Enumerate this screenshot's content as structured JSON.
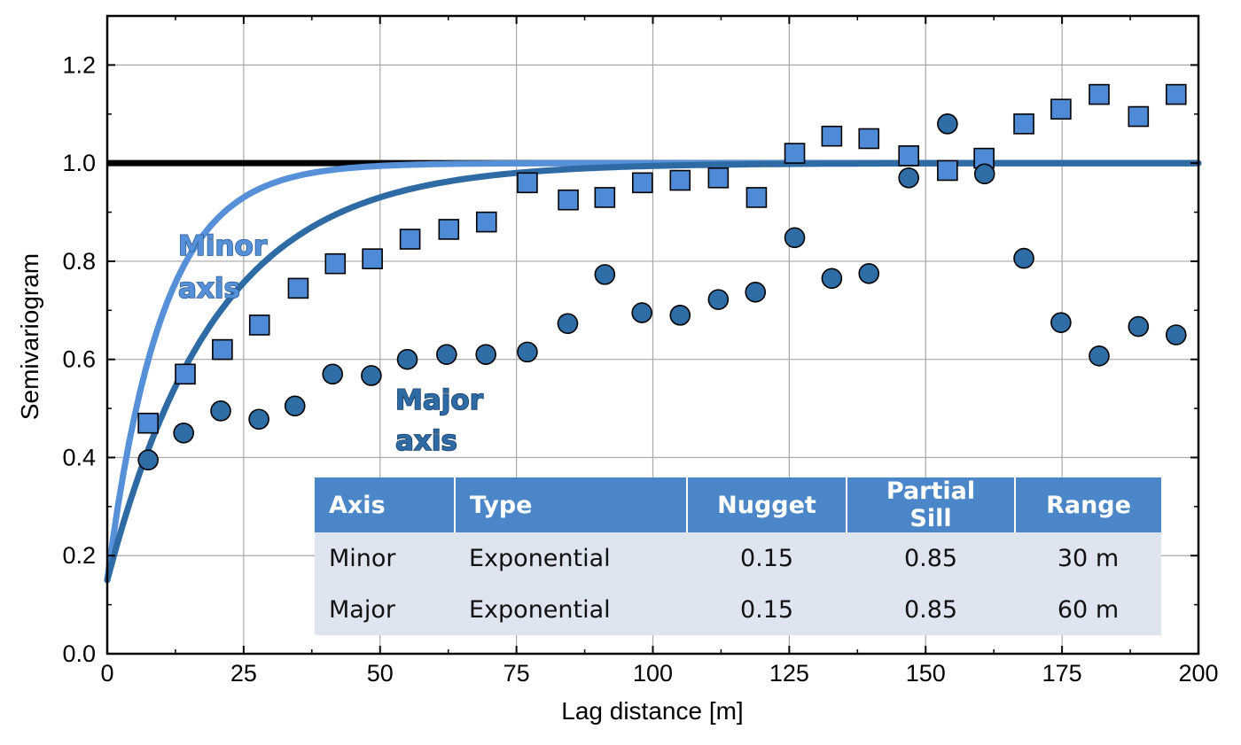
{
  "colors": {
    "minor": "#5590d9",
    "minor_marker": "#4f8ad6",
    "major": "#2e6aa3",
    "major_marker": "#2e6da5",
    "sill_line": "#000000",
    "grid": "#a8a8a8",
    "table_header": "#4a86c8",
    "table_body": "#dfe4f1"
  },
  "chart_data": {
    "type": "scatter",
    "xlabel": "Lag distance [m]",
    "ylabel": "Semivariogram",
    "xlim": [
      0,
      200
    ],
    "ylim": [
      0,
      1.3
    ],
    "x_ticks": [
      "0",
      "25",
      "50",
      "75",
      "100",
      "125",
      "150",
      "175",
      "200"
    ],
    "y_ticks": [
      "0.0",
      "0.2",
      "0.4",
      "0.6",
      "0.8",
      "1.0",
      "1.2"
    ],
    "grid": true,
    "sill_line": {
      "y": 1.0
    },
    "series": [
      {
        "marker": "square",
        "x": [
          7.5,
          14.3,
          21.1,
          27.9,
          35.0,
          41.8,
          48.6,
          55.5,
          62.6,
          69.5,
          77.0,
          84.5,
          91.2,
          98.1,
          105.0,
          112.0,
          119.0,
          126.0,
          132.8,
          139.6,
          146.9,
          154.0,
          160.7,
          168.0,
          174.8,
          181.8,
          189.0,
          195.9
        ],
        "y": [
          0.47,
          0.57,
          0.62,
          0.67,
          0.745,
          0.795,
          0.805,
          0.845,
          0.865,
          0.88,
          0.96,
          0.925,
          0.93,
          0.96,
          0.965,
          0.97,
          0.93,
          1.02,
          1.055,
          1.05,
          1.015,
          0.985,
          1.01,
          1.08,
          1.11,
          1.14,
          1.095,
          1.14
        ]
      },
      {
        "marker": "circle",
        "x": [
          7.5,
          14.0,
          20.8,
          27.8,
          34.4,
          41.3,
          48.4,
          55.0,
          62.2,
          69.4,
          77.0,
          84.4,
          91.2,
          98.0,
          105.0,
          112.0,
          118.8,
          126.0,
          132.8,
          139.6,
          146.9,
          154.0,
          160.8,
          168.0,
          174.8,
          181.8,
          189.0,
          195.9
        ],
        "y": [
          0.395,
          0.45,
          0.495,
          0.478,
          0.505,
          0.57,
          0.567,
          0.6,
          0.61,
          0.61,
          0.615,
          0.673,
          0.773,
          0.695,
          0.69,
          0.722,
          0.737,
          0.848,
          0.765,
          0.775,
          0.97,
          1.08,
          0.978,
          0.806,
          0.675,
          0.607,
          0.667,
          0.65
        ]
      },
      {
        "model": "exponential",
        "nugget": 0.15,
        "partial_sill": 0.85,
        "range": 30
      },
      {
        "model": "exponential",
        "nugget": 0.15,
        "partial_sill": 0.85,
        "range": 60
      }
    ]
  },
  "annotations": {
    "minor_label": [
      "Minor",
      "axis"
    ],
    "major_label": [
      "Major",
      "axis"
    ]
  },
  "table": {
    "headers": [
      "Axis",
      "Type",
      "Nugget",
      "Partial Sill",
      "Range"
    ],
    "rows": [
      [
        "Minor",
        "Exponential",
        "0.15",
        "0.85",
        "30 m"
      ],
      [
        "Major",
        "Exponential",
        "0.15",
        "0.85",
        "60 m"
      ]
    ]
  }
}
